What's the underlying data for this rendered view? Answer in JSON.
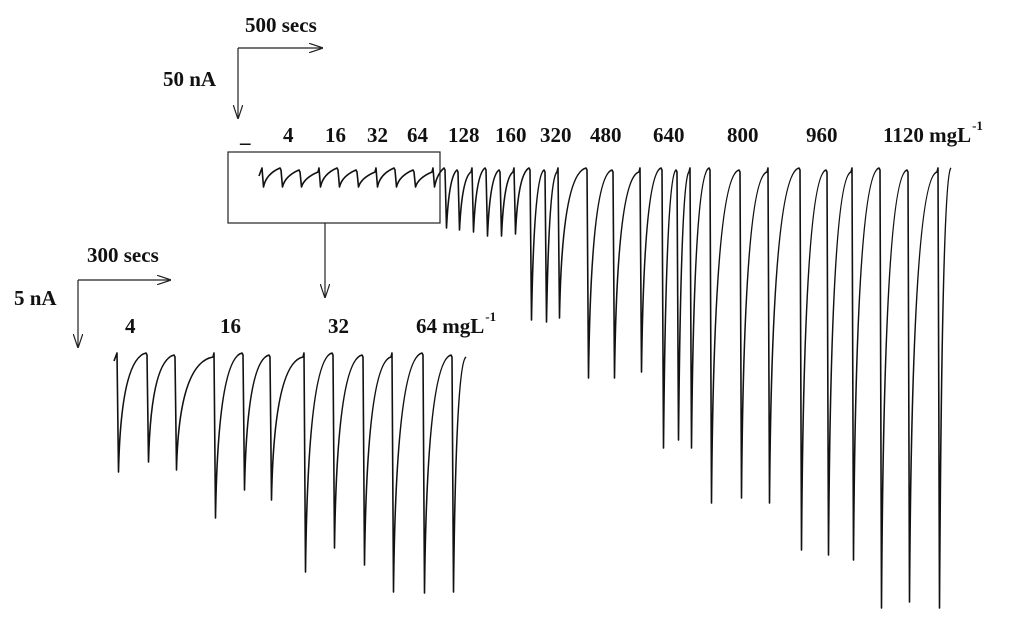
{
  "main": {
    "time_scale": "500 secs",
    "current_scale": "50 nA",
    "labels": [
      "_",
      "4",
      "16",
      "32",
      "64",
      "128",
      "160",
      "320",
      "480",
      "640",
      "800",
      "960",
      "1120 mgL"
    ],
    "unit_superscript": "-1"
  },
  "inset": {
    "time_scale": "300 secs",
    "current_scale": "5 nA",
    "labels": [
      "4",
      "16",
      "32",
      "64 mgL"
    ],
    "unit_superscript": "-1"
  }
}
